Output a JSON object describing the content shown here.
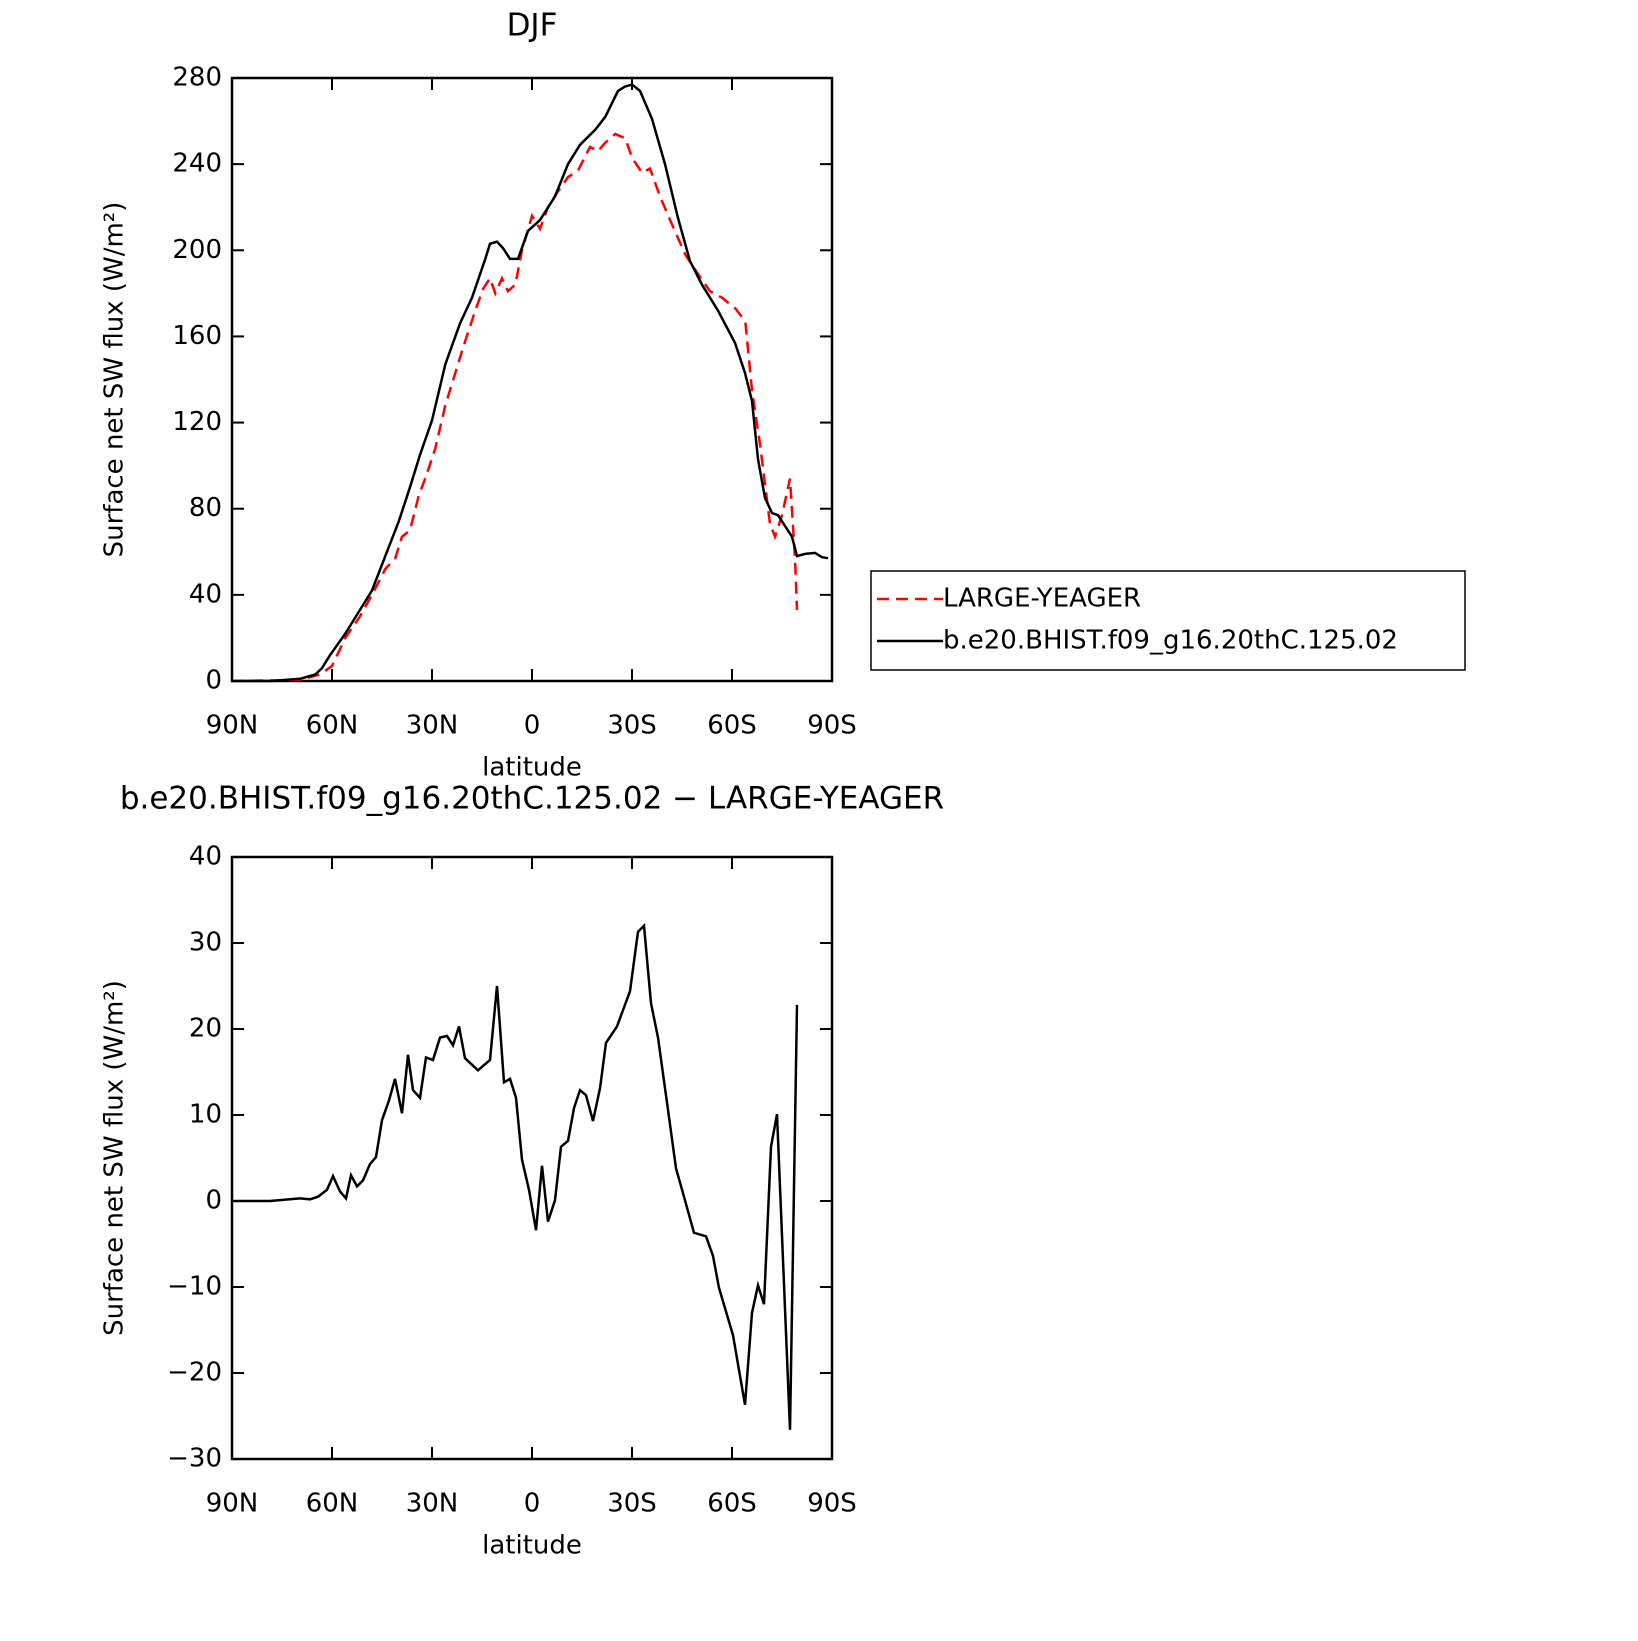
{
  "chart_data": [
    {
      "type": "line",
      "title": "DJF",
      "x_label": "latitude",
      "y_label": "Surface net SW flux (W/m²)",
      "xlim": [
        90,
        -90
      ],
      "ylim": [
        0,
        280
      ],
      "xticks": [
        {
          "value": 90,
          "label": "90N"
        },
        {
          "value": 60,
          "label": "60N"
        },
        {
          "value": 30,
          "label": "30N"
        },
        0,
        {
          "value": -30,
          "label": "30S"
        },
        {
          "value": -60,
          "label": "60S"
        },
        {
          "value": -90,
          "label": "90S"
        }
      ],
      "yticks": [
        0,
        40,
        80,
        120,
        160,
        200,
        240,
        280
      ],
      "legend": "right",
      "series": [
        {
          "name": "LARGE-YEAGER",
          "color": "#ff0000",
          "dashed": true,
          "x": [
            90,
            69.6,
            63.6,
            60,
            56,
            51.6,
            48,
            44,
            41,
            39,
            36.6,
            34,
            31.8,
            29,
            26,
            23,
            20,
            17,
            14.7,
            12.6,
            11,
            9,
            7.2,
            5,
            3,
            0,
            -2.4,
            -4.8,
            -7.2,
            -10.8,
            -13.8,
            -17.4,
            -19.8,
            -22,
            -25,
            -28,
            -30,
            -33,
            -35.4,
            -38.4,
            -42,
            -46,
            -49.8,
            -53.4,
            -57,
            -61,
            -64,
            -66,
            -68.4,
            -71.4,
            -72.9,
            -75,
            -77.4,
            -78.9,
            -79.5
          ],
          "values": [
            0,
            0.5,
            3,
            7,
            20,
            30,
            40,
            52,
            57,
            67,
            70,
            86,
            95,
            108,
            128,
            143,
            158,
            172,
            182,
            187,
            180,
            187,
            181,
            184,
            200,
            216,
            210,
            220,
            226,
            234,
            237,
            248,
            246,
            250,
            254,
            252,
            243,
            236,
            238,
            225,
            212,
            198,
            189,
            181,
            178,
            173,
            167,
            135,
            110,
            73,
            67,
            77,
            94,
            57,
            33
          ]
        },
        {
          "name": "b.e20.BHIST.f09_g16.20thC.125.02",
          "color": "#000000",
          "dashed": false,
          "x": [
            90,
            78,
            69.6,
            65,
            63,
            60.6,
            56,
            51.6,
            48,
            44,
            40,
            36.6,
            33.6,
            30,
            26,
            21.6,
            18,
            14,
            12.6,
            10.5,
            8.7,
            6.6,
            4.2,
            1.2,
            -2.4,
            -6.9,
            -10.8,
            -14.4,
            -19,
            -22,
            -25.8,
            -27.9,
            -30,
            -32.4,
            -36,
            -39.9,
            -43.8,
            -47.4,
            -51,
            -55.8,
            -60.9,
            -63.9,
            -66,
            -67.8,
            -69.9,
            -72,
            -73.8,
            -75.9,
            -78,
            -79.5,
            -81.9,
            -84.9,
            -87,
            -88.8
          ],
          "values": [
            0,
            0,
            1,
            3,
            6,
            12,
            22,
            33,
            42,
            58,
            74,
            90,
            105,
            121,
            147,
            166,
            178,
            196,
            203,
            204,
            201,
            196,
            196,
            209,
            214,
            225,
            240,
            249,
            256,
            262,
            274,
            276,
            277,
            274,
            261,
            240,
            215,
            195,
            184,
            172,
            157,
            143,
            130,
            103,
            85,
            78,
            77,
            72,
            67,
            58,
            59,
            59.5,
            57.5,
            57
          ]
        }
      ]
    },
    {
      "type": "line",
      "title": "b.e20.BHIST.f09_g16.20thC.125.02 − LARGE-YEAGER",
      "x_label": "latitude",
      "y_label": "Surface net SW flux (W/m²)",
      "xlim": [
        90,
        -90
      ],
      "ylim": [
        -30,
        40
      ],
      "xticks": [
        {
          "value": 90,
          "label": "90N"
        },
        {
          "value": 60,
          "label": "60N"
        },
        {
          "value": 30,
          "label": "30N"
        },
        0,
        {
          "value": -30,
          "label": "30S"
        },
        {
          "value": -60,
          "label": "60S"
        },
        {
          "value": -90,
          "label": "90S"
        }
      ],
      "yticks": [
        {
          "value": -30,
          "label": "−30"
        },
        {
          "value": -20,
          "label": "−20"
        },
        {
          "value": -10,
          "label": "−10"
        },
        0,
        10,
        20,
        30,
        40
      ],
      "series": [
        {
          "color": "#000000",
          "dashed": false,
          "x": [
            90,
            78.6,
            69.6,
            66.6,
            64.2,
            61.5,
            59.7,
            57.6,
            55.8,
            54.3,
            52.5,
            50.7,
            48.6,
            46.8,
            45,
            42.9,
            41.1,
            39,
            37.2,
            35.7,
            33.6,
            31.8,
            29.7,
            27.6,
            25.5,
            23.7,
            21.9,
            20.1,
            16.2,
            12.6,
            10.5,
            8.4,
            6.6,
            4.8,
            3,
            0.9,
            -1.2,
            -3,
            -4.8,
            -6.9,
            -8.7,
            -10.8,
            -12.6,
            -14.4,
            -16.2,
            -18.3,
            -20.4,
            -22.2,
            -25.5,
            -29.4,
            -31.8,
            -33.6,
            -35.7,
            -37.8,
            -40.8,
            -43.2,
            -45.6,
            -48.6,
            -52.2,
            -54.3,
            -56.1,
            -60.3,
            -63.9,
            -66,
            -67.8,
            -69.6,
            -71.7,
            -73.5,
            -77.4,
            -79.5
          ],
          "values": [
            0,
            0,
            0.3,
            0.2,
            0.5,
            1.3,
            2.9,
            1.1,
            0.3,
            3.0,
            1.7,
            2.4,
            4.3,
            5.1,
            9.4,
            11.7,
            14.2,
            10.2,
            17,
            12.9,
            12,
            16.7,
            16.4,
            19,
            19.2,
            18.1,
            20.3,
            16.6,
            15.2,
            16.4,
            25,
            13.8,
            14.2,
            12,
            4.8,
            1.3,
            -3.4,
            4.1,
            -2.4,
            0.1,
            6.3,
            7,
            10.8,
            12.9,
            12.3,
            9.3,
            13.1,
            18.4,
            20.3,
            24.4,
            31.3,
            32,
            23,
            19,
            10.6,
            3.8,
            0.5,
            -3.7,
            -4.1,
            -6.4,
            -10.1,
            -15.6,
            -23.7,
            -13,
            -9.8,
            -12,
            6.3,
            10.1,
            -26.6,
            22.8
          ]
        }
      ]
    }
  ]
}
